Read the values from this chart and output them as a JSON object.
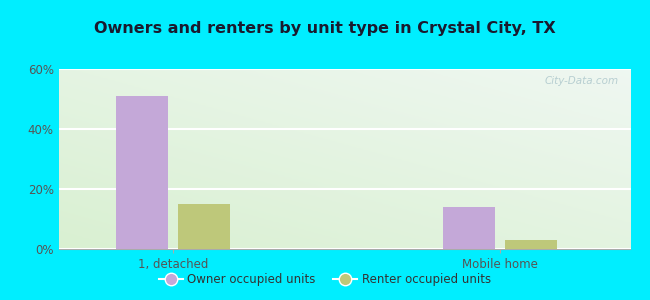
{
  "title": "Owners and renters by unit type in Crystal City, TX",
  "categories": [
    "1, detached",
    "Mobile home"
  ],
  "owner_values": [
    51,
    14
  ],
  "renter_values": [
    15,
    3
  ],
  "owner_color": "#c4a8d8",
  "renter_color": "#bec87a",
  "background_outer": "#00eeff",
  "ylim": [
    0,
    60
  ],
  "yticks": [
    0,
    20,
    40,
    60
  ],
  "ytick_labels": [
    "0%",
    "20%",
    "40%",
    "60%"
  ],
  "legend_owner": "Owner occupied units",
  "legend_renter": "Renter occupied units",
  "bar_width": 0.32,
  "group_positions": [
    1.0,
    3.0
  ],
  "watermark": "City-Data.com",
  "title_color": "#1a1a2e",
  "tick_color": "#555555"
}
